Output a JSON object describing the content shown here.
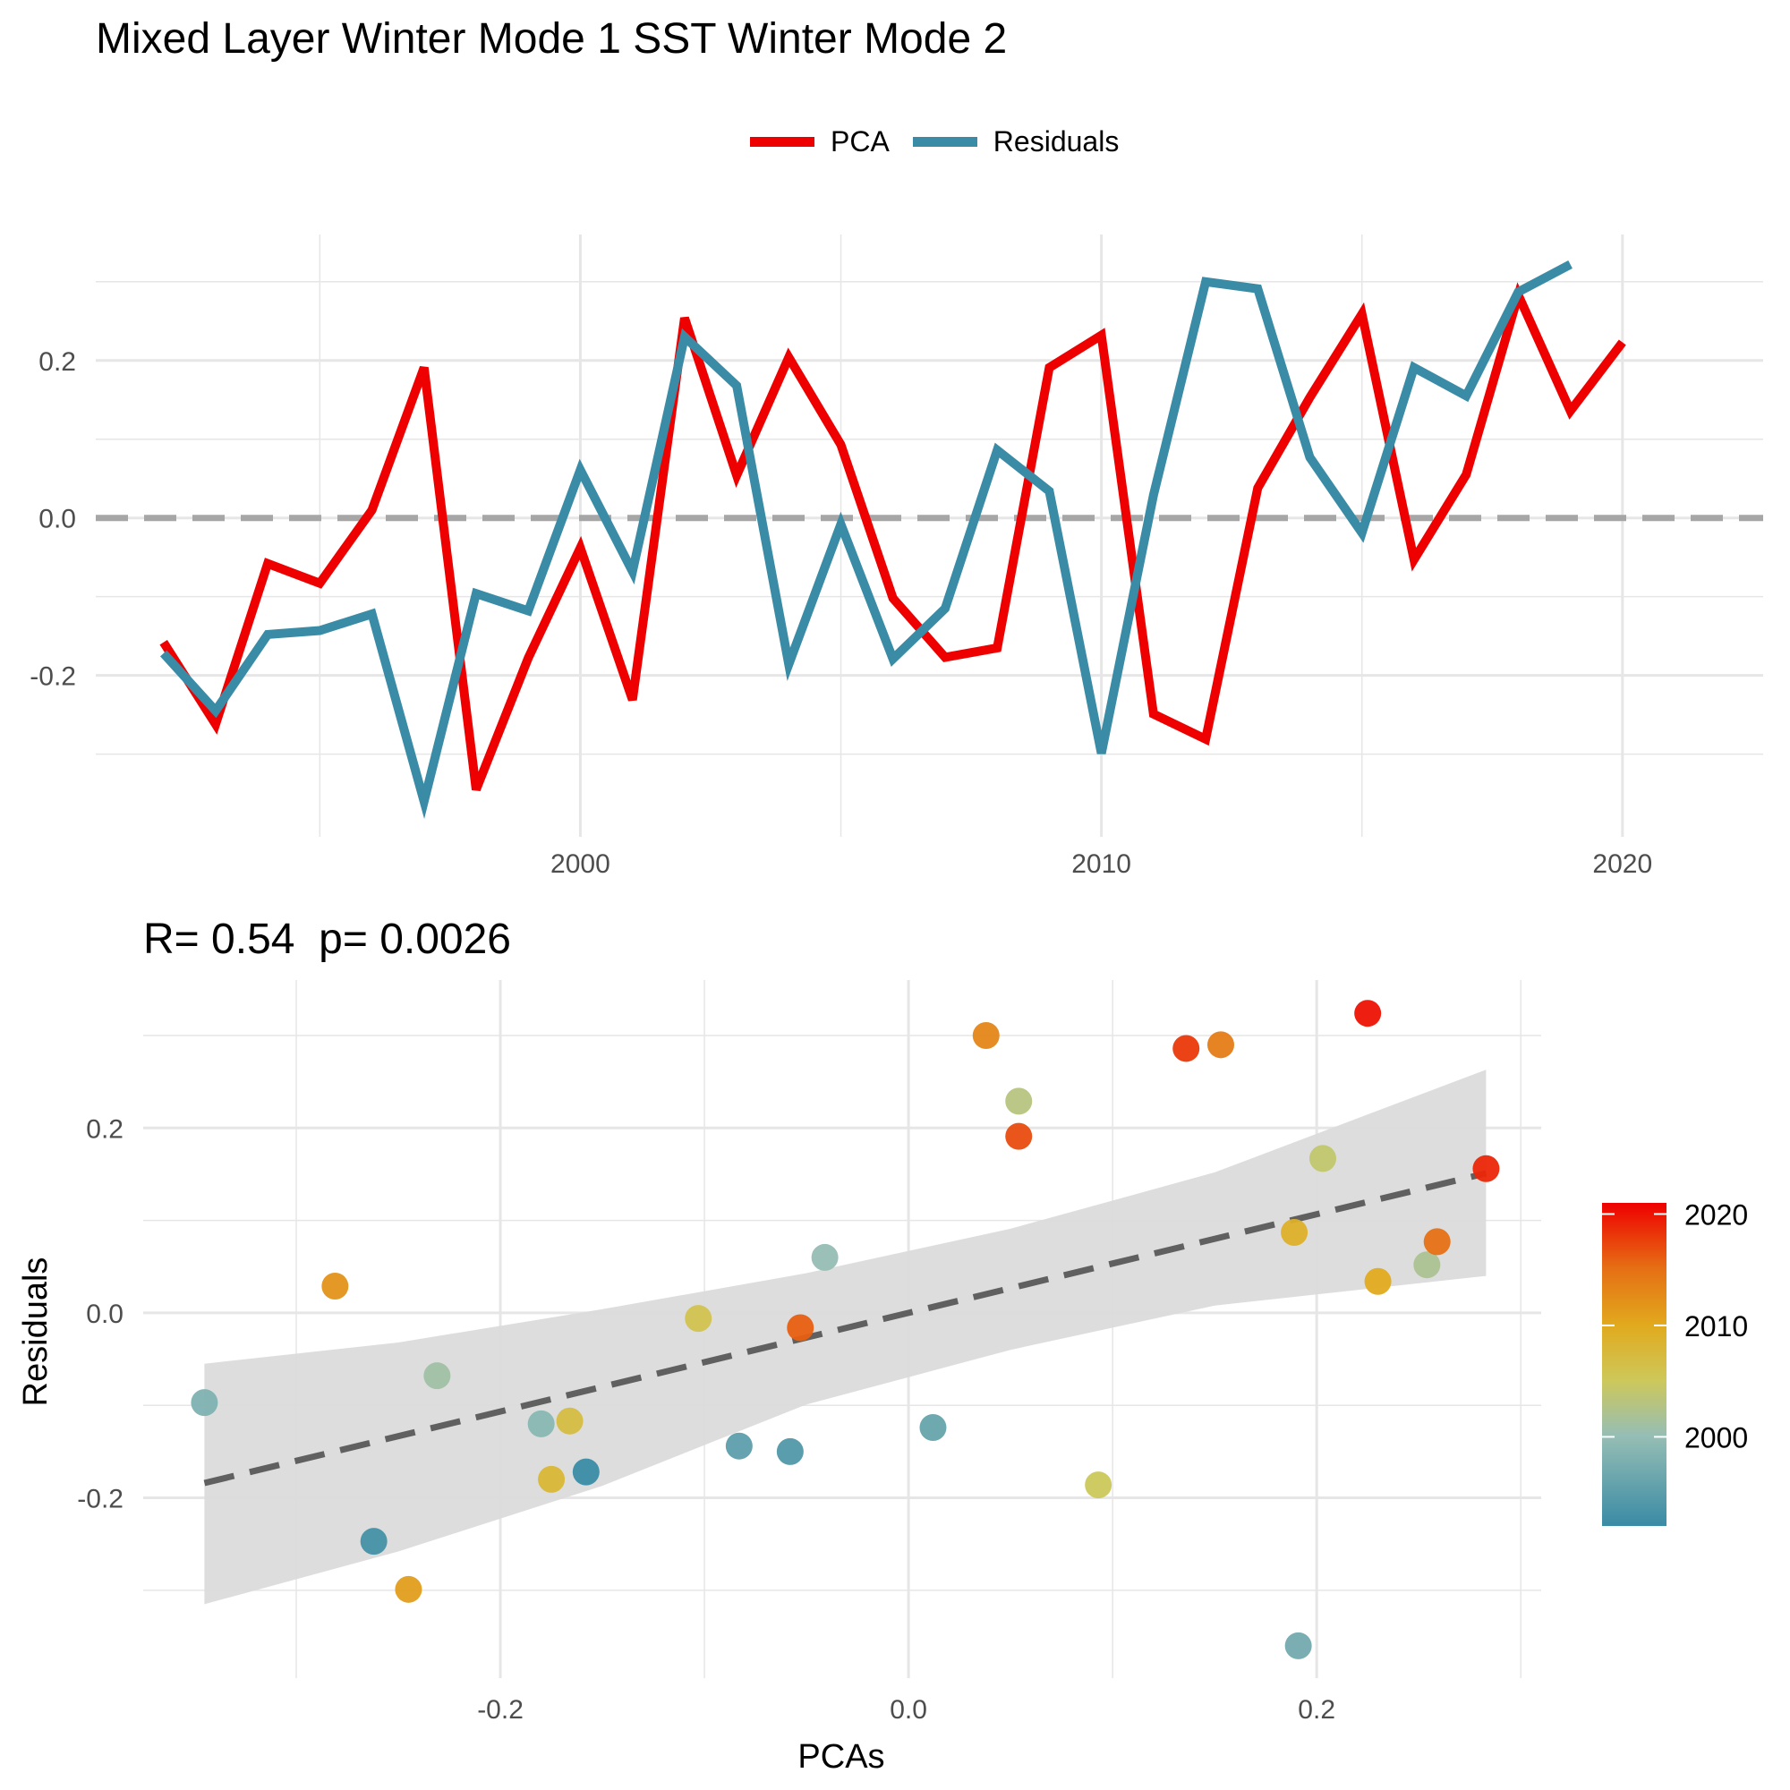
{
  "title": "Mixed Layer Winter Mode 1 SST Winter Mode 2",
  "colors": {
    "pca": "#EE0000",
    "residuals": "#3A8BA5",
    "zero_line": "#A6A6A6",
    "fit_line": "#606060",
    "ribbon": "#DBDBDB",
    "grid": "#E6E6E6"
  },
  "chart_data": [
    {
      "type": "line",
      "legend": {
        "position": "top",
        "entries": [
          "PCA",
          "Residuals"
        ]
      },
      "x_ticks": [
        2000,
        2010,
        2020
      ],
      "y_ticks": [
        -0.2,
        0.0,
        0.2
      ],
      "y_tick_labels": [
        "-0.2",
        "0.0",
        "0.2"
      ],
      "xlim": [
        1990.7,
        2022.7
      ],
      "ylim": [
        -0.405,
        0.36
      ],
      "grid": true,
      "zero_line": 0,
      "x": [
        1992,
        1993,
        1994,
        1995,
        1996,
        1997,
        1998,
        1999,
        2000,
        2001,
        2002,
        2003,
        2004,
        2005,
        2006,
        2007,
        2008,
        2009,
        2010,
        2011,
        2012,
        2013,
        2014,
        2015,
        2016,
        2017,
        2018,
        2019,
        2020,
        2021
      ],
      "series": [
        {
          "name": "PCA",
          "values": [
            -0.158,
            -0.262,
            -0.058,
            -0.083,
            0.01,
            0.191,
            -0.345,
            -0.178,
            -0.038,
            -0.231,
            0.254,
            0.054,
            0.204,
            0.093,
            -0.102,
            -0.177,
            -0.165,
            0.191,
            0.232,
            -0.249,
            -0.281,
            0.038,
            0.153,
            0.259,
            -0.053,
            0.055,
            0.283,
            0.136,
            0.223,
            null
          ]
        },
        {
          "name": "Residuals",
          "values": [
            -0.172,
            -0.245,
            -0.148,
            -0.143,
            -0.122,
            -0.36,
            -0.096,
            -0.118,
            0.061,
            -0.068,
            0.23,
            0.168,
            -0.186,
            -0.008,
            -0.179,
            -0.115,
            0.086,
            0.034,
            -0.299,
            0.029,
            0.3,
            0.291,
            0.077,
            -0.019,
            0.191,
            0.155,
            0.287,
            0.322,
            null,
            null
          ]
        }
      ]
    },
    {
      "type": "scatter",
      "title": "R= 0.54  p= 0.0026",
      "xlabel": "PCAs",
      "ylabel": "Residuals",
      "x_ticks": [
        -0.2,
        0.0,
        0.2
      ],
      "x_tick_labels": [
        "-0.2",
        "0.0",
        "0.2"
      ],
      "y_ticks": [
        -0.2,
        0.0,
        0.2
      ],
      "y_tick_labels": [
        "-0.2",
        "0.0",
        "0.2"
      ],
      "xlim": [
        -0.375,
        0.31
      ],
      "ylim": [
        -0.395,
        0.36
      ],
      "grid": true,
      "colorbar": {
        "ticks": [
          2000,
          2010,
          2020
        ],
        "min": 1992,
        "max": 2021,
        "position": "right"
      },
      "fit": {
        "type": "linear",
        "from": [
          -0.345,
          -0.184
        ],
        "to": [
          0.283,
          0.151
        ]
      },
      "ci_band": {
        "x": [
          -0.345,
          -0.25,
          -0.15,
          -0.05,
          0.05,
          0.15,
          0.283
        ],
        "upper": [
          -0.055,
          -0.032,
          0.004,
          0.043,
          0.091,
          0.152,
          0.263
        ],
        "lower": [
          -0.315,
          -0.258,
          -0.187,
          -0.099,
          -0.04,
          0.008,
          0.04
        ]
      },
      "points": [
        {
          "x": -0.158,
          "y": -0.172,
          "year": 1992
        },
        {
          "x": -0.262,
          "y": -0.247,
          "year": 1993
        },
        {
          "x": -0.058,
          "y": -0.15,
          "year": 1994
        },
        {
          "x": -0.083,
          "y": -0.144,
          "year": 1995
        },
        {
          "x": 0.012,
          "y": -0.124,
          "year": 1996
        },
        {
          "x": 0.191,
          "y": -0.36,
          "year": 1997
        },
        {
          "x": -0.345,
          "y": -0.097,
          "year": 1998
        },
        {
          "x": -0.18,
          "y": -0.12,
          "year": 1999
        },
        {
          "x": -0.041,
          "y": 0.06,
          "year": 2000
        },
        {
          "x": -0.231,
          "y": -0.068,
          "year": 2001
        },
        {
          "x": 0.254,
          "y": 0.052,
          "year": 2002
        },
        {
          "x": 0.054,
          "y": 0.229,
          "year": 2003
        },
        {
          "x": 0.203,
          "y": 0.167,
          "year": 2004
        },
        {
          "x": 0.093,
          "y": -0.186,
          "year": 2005
        },
        {
          "x": -0.103,
          "y": -0.006,
          "year": 2006
        },
        {
          "x": -0.166,
          "y": -0.117,
          "year": 2007
        },
        {
          "x": -0.175,
          "y": -0.18,
          "year": 2008
        },
        {
          "x": 0.189,
          "y": 0.087,
          "year": 2009
        },
        {
          "x": 0.23,
          "y": 0.034,
          "year": 2010
        },
        {
          "x": -0.245,
          "y": -0.299,
          "year": 2011
        },
        {
          "x": -0.281,
          "y": 0.029,
          "year": 2012
        },
        {
          "x": 0.038,
          "y": 0.3,
          "year": 2013
        },
        {
          "x": 0.153,
          "y": 0.29,
          "year": 2014
        },
        {
          "x": 0.259,
          "y": 0.077,
          "year": 2015
        },
        {
          "x": -0.053,
          "y": -0.016,
          "year": 2016
        },
        {
          "x": 0.054,
          "y": 0.191,
          "year": 2017
        },
        {
          "x": 0.136,
          "y": 0.286,
          "year": 2018
        },
        {
          "x": 0.283,
          "y": 0.156,
          "year": 2019
        },
        {
          "x": 0.225,
          "y": 0.324,
          "year": 2020
        }
      ]
    }
  ]
}
